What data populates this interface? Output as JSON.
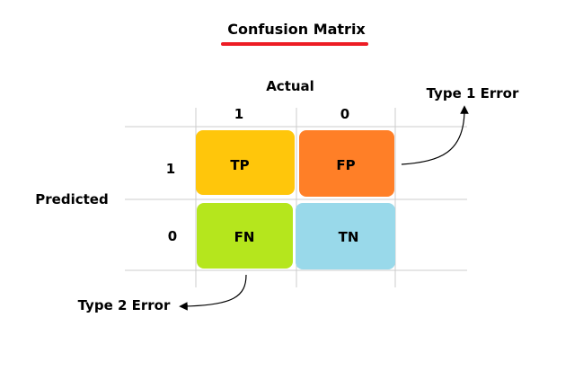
{
  "title": "Confusion Matrix",
  "colors": {
    "title_underline": "#ED1C24",
    "grid": "#CCCCCC",
    "tp": "#FFC60B",
    "fp": "#FF7F27",
    "fn": "#B5E61D",
    "tn": "#99D9EA"
  },
  "axes": {
    "actual_label": "Actual",
    "predicted_label": "Predicted",
    "actual_values": [
      "1",
      "0"
    ],
    "predicted_values": [
      "1",
      "0"
    ]
  },
  "cells": {
    "tp": "TP",
    "fp": "FP",
    "fn": "FN",
    "tn": "TN"
  },
  "annotations": {
    "type1": "Type 1 Error",
    "type2": "Type 2 Error"
  }
}
